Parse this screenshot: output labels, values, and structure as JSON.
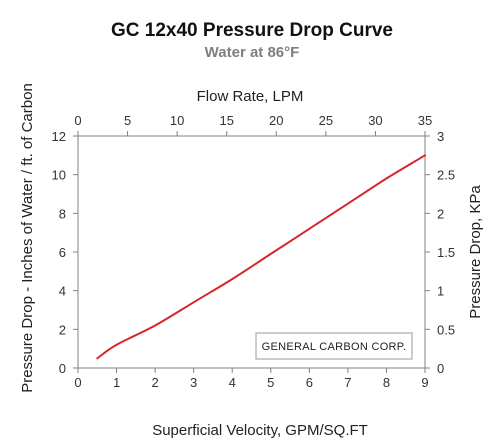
{
  "chart_data": {
    "type": "line",
    "title": "GC 12x40 Pressure Drop Curve",
    "subtitle": "Water at 86°F",
    "xlabel": "Superficial Velocity, GPM/SQ.FT",
    "ylabel": "Pressure Drop - Inches of Water / ft. of Carbon",
    "x2label": "Flow Rate, LPM",
    "y2label": "Pressure Drop, KPa",
    "xlim": [
      0,
      9
    ],
    "ylim": [
      0,
      12
    ],
    "x2lim": [
      0,
      35
    ],
    "y2lim": [
      0,
      3
    ],
    "xticks": [
      "0",
      "1",
      "2",
      "3",
      "4",
      "5",
      "6",
      "7",
      "8",
      "9"
    ],
    "yticks": [
      "0",
      "2",
      "4",
      "6",
      "8",
      "10",
      "12"
    ],
    "x2ticks": [
      "0",
      "5",
      "10",
      "15",
      "20",
      "25",
      "30",
      "35"
    ],
    "y2ticks": [
      "0",
      "0.5",
      "1",
      "1.5",
      "2",
      "2.5",
      "3"
    ],
    "grid": false,
    "series": [
      {
        "color": "#d62728",
        "x": [
          0.5,
          1,
          2,
          3,
          4,
          5,
          6,
          7,
          8,
          9
        ],
        "y": [
          0.5,
          1.2,
          2.2,
          3.4,
          4.6,
          5.9,
          7.2,
          8.5,
          9.8,
          11.0
        ]
      }
    ],
    "annotation": "GENERAL  CARBON CORP."
  }
}
